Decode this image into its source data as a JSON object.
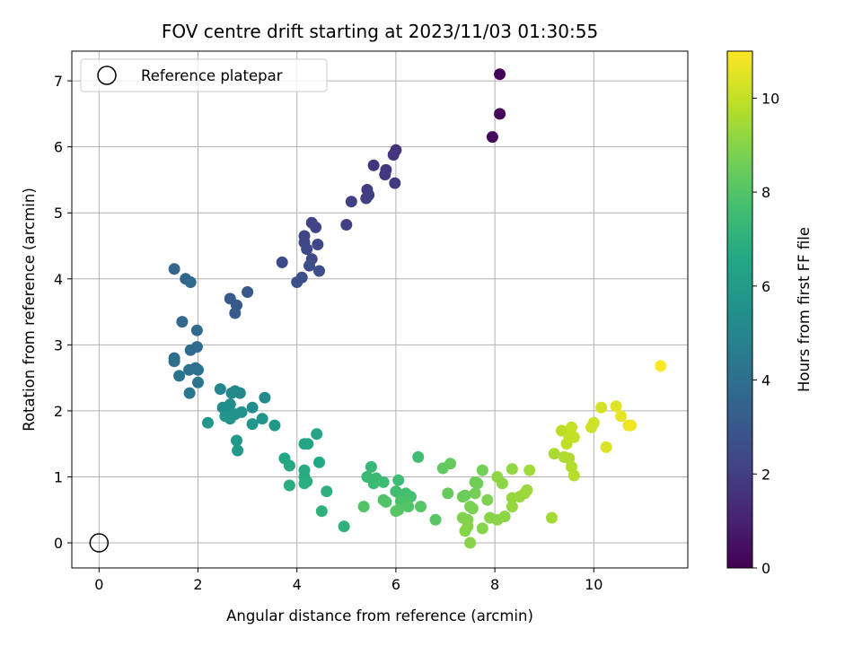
{
  "chart_data": {
    "type": "scatter",
    "title": "FOV centre drift starting at 2023/11/03 01:30:55",
    "xlabel": "Angular distance from reference (arcmin)",
    "ylabel": "Rotation from reference (arcmin)",
    "xlim": [
      -0.55,
      11.9
    ],
    "ylim": [
      -0.38,
      7.45
    ],
    "x_ticks": [
      0,
      2,
      4,
      6,
      8,
      10
    ],
    "y_ticks": [
      0,
      1,
      2,
      3,
      4,
      5,
      6,
      7
    ],
    "grid": true,
    "legend": {
      "position": "top-left",
      "entries": [
        "Reference platepar"
      ]
    },
    "reference_point": {
      "x": 0,
      "y": 0,
      "label": "Reference platepar"
    },
    "colorbar": {
      "label": "Hours from first FF file",
      "range": [
        0,
        11
      ],
      "ticks": [
        0,
        2,
        4,
        6,
        8,
        10
      ],
      "colormap": "viridis"
    },
    "series": [
      {
        "points": [
          [
            8.1,
            7.1,
            0.1
          ],
          [
            8.1,
            6.5,
            0.2
          ],
          [
            7.95,
            6.15,
            0.3
          ],
          [
            6.0,
            5.95,
            1.6
          ],
          [
            5.95,
            5.88,
            1.65
          ],
          [
            5.55,
            5.72,
            1.7
          ],
          [
            5.8,
            5.65,
            1.75
          ],
          [
            5.78,
            5.58,
            1.8
          ],
          [
            5.98,
            5.45,
            1.85
          ],
          [
            5.42,
            5.35,
            1.9
          ],
          [
            5.45,
            5.27,
            1.95
          ],
          [
            5.4,
            5.22,
            2.0
          ],
          [
            5.1,
            5.17,
            2.05
          ],
          [
            5.0,
            4.82,
            2.1
          ],
          [
            4.3,
            4.85,
            2.15
          ],
          [
            4.38,
            4.78,
            2.2
          ],
          [
            4.15,
            4.65,
            2.25
          ],
          [
            4.15,
            4.55,
            2.3
          ],
          [
            4.42,
            4.52,
            2.35
          ],
          [
            4.2,
            4.45,
            2.4
          ],
          [
            4.3,
            4.3,
            2.45
          ],
          [
            3.7,
            4.25,
            2.5
          ],
          [
            4.25,
            4.2,
            2.55
          ],
          [
            4.45,
            4.12,
            2.6
          ],
          [
            4.1,
            4.02,
            2.65
          ],
          [
            4.0,
            3.95,
            2.7
          ],
          [
            3.0,
            3.8,
            3.0
          ],
          [
            2.65,
            3.7,
            3.05
          ],
          [
            2.78,
            3.6,
            3.1
          ],
          [
            2.75,
            3.48,
            3.15
          ],
          [
            1.52,
            4.15,
            3.6
          ],
          [
            1.75,
            4.0,
            3.65
          ],
          [
            1.85,
            3.95,
            3.7
          ],
          [
            1.68,
            3.35,
            3.75
          ],
          [
            1.98,
            3.22,
            3.8
          ],
          [
            1.98,
            2.97,
            3.85
          ],
          [
            1.85,
            2.92,
            3.9
          ],
          [
            1.52,
            2.8,
            3.95
          ],
          [
            1.52,
            2.75,
            4.0
          ],
          [
            1.95,
            2.65,
            4.05
          ],
          [
            1.82,
            2.62,
            4.1
          ],
          [
            2.0,
            2.62,
            4.15
          ],
          [
            1.62,
            2.53,
            4.2
          ],
          [
            2.0,
            2.43,
            4.3
          ],
          [
            1.83,
            2.27,
            4.4
          ],
          [
            2.45,
            2.33,
            5.0
          ],
          [
            2.75,
            2.3,
            5.05
          ],
          [
            2.68,
            2.27,
            5.1
          ],
          [
            2.85,
            2.27,
            5.15
          ],
          [
            3.35,
            2.2,
            5.2
          ],
          [
            2.5,
            2.05,
            5.25
          ],
          [
            2.65,
            2.1,
            5.3
          ],
          [
            3.1,
            2.05,
            5.35
          ],
          [
            2.6,
            2.0,
            5.4
          ],
          [
            2.55,
            2.03,
            5.45
          ],
          [
            2.75,
            1.95,
            5.5
          ],
          [
            2.88,
            1.98,
            5.55
          ],
          [
            2.65,
            1.88,
            5.6
          ],
          [
            2.55,
            1.92,
            5.65
          ],
          [
            3.3,
            1.88,
            5.7
          ],
          [
            3.1,
            1.8,
            5.75
          ],
          [
            2.2,
            1.82,
            5.8
          ],
          [
            3.55,
            1.78,
            5.85
          ],
          [
            2.78,
            1.55,
            5.9
          ],
          [
            2.8,
            1.4,
            5.95
          ],
          [
            4.4,
            1.65,
            6.4
          ],
          [
            4.15,
            1.5,
            6.45
          ],
          [
            4.22,
            1.5,
            6.5
          ],
          [
            3.75,
            1.28,
            6.55
          ],
          [
            4.45,
            1.22,
            6.6
          ],
          [
            3.85,
            1.17,
            6.65
          ],
          [
            4.15,
            1.1,
            6.7
          ],
          [
            4.15,
            1.0,
            6.75
          ],
          [
            4.2,
            0.93,
            6.8
          ],
          [
            4.15,
            0.9,
            6.85
          ],
          [
            3.85,
            0.87,
            6.9
          ],
          [
            4.6,
            0.78,
            6.95
          ],
          [
            4.5,
            0.48,
            7.0
          ],
          [
            4.95,
            0.25,
            7.05
          ],
          [
            5.5,
            1.15,
            7.3
          ],
          [
            5.42,
            1.0,
            7.35
          ],
          [
            5.6,
            0.98,
            7.4
          ],
          [
            5.55,
            0.9,
            7.45
          ],
          [
            5.75,
            0.92,
            7.5
          ],
          [
            6.05,
            0.95,
            7.55
          ],
          [
            6.45,
            1.3,
            7.6
          ],
          [
            6.0,
            0.78,
            7.6
          ],
          [
            6.1,
            0.72,
            7.65
          ],
          [
            6.2,
            0.75,
            7.7
          ],
          [
            6.3,
            0.7,
            7.75
          ],
          [
            6.2,
            0.65,
            7.8
          ],
          [
            6.1,
            0.63,
            7.85
          ],
          [
            5.75,
            0.65,
            7.9
          ],
          [
            5.8,
            0.62,
            7.95
          ],
          [
            5.35,
            0.55,
            7.95
          ],
          [
            6.25,
            0.55,
            8.0
          ],
          [
            6.5,
            0.55,
            8.05
          ],
          [
            6.05,
            0.5,
            8.05
          ],
          [
            6.0,
            0.48,
            8.1
          ],
          [
            6.8,
            0.35,
            8.15
          ],
          [
            6.95,
            1.13,
            8.3
          ],
          [
            7.1,
            1.2,
            8.35
          ],
          [
            7.05,
            0.75,
            8.4
          ],
          [
            7.4,
            0.72,
            8.45
          ],
          [
            7.35,
            0.7,
            8.5
          ],
          [
            7.6,
            0.92,
            8.55
          ],
          [
            7.65,
            0.9,
            8.6
          ],
          [
            7.75,
            1.1,
            8.65
          ],
          [
            7.6,
            0.75,
            8.7
          ],
          [
            7.5,
            0.55,
            8.75
          ],
          [
            7.55,
            0.52,
            8.8
          ],
          [
            7.85,
            0.65,
            8.85
          ],
          [
            7.35,
            0.38,
            8.9
          ],
          [
            7.45,
            0.35,
            8.9
          ],
          [
            7.45,
            0.25,
            8.95
          ],
          [
            7.4,
            0.18,
            9.0
          ],
          [
            7.5,
            0.0,
            9.0
          ],
          [
            7.75,
            0.22,
            9.0
          ],
          [
            7.9,
            0.38,
            9.05
          ],
          [
            8.05,
            0.35,
            9.05
          ],
          [
            8.2,
            0.4,
            9.1
          ],
          [
            8.15,
            0.9,
            9.1
          ],
          [
            8.05,
            1.0,
            9.15
          ],
          [
            8.35,
            1.12,
            9.2
          ],
          [
            8.35,
            0.68,
            9.25
          ],
          [
            8.35,
            0.55,
            9.25
          ],
          [
            8.5,
            0.7,
            9.3
          ],
          [
            8.6,
            0.75,
            9.35
          ],
          [
            8.65,
            0.8,
            9.35
          ],
          [
            8.7,
            1.1,
            9.4
          ],
          [
            9.15,
            0.38,
            9.5
          ],
          [
            9.2,
            1.35,
            9.6
          ],
          [
            9.4,
            1.3,
            9.65
          ],
          [
            9.5,
            1.28,
            9.7
          ],
          [
            9.55,
            1.15,
            9.75
          ],
          [
            9.6,
            1.02,
            9.8
          ],
          [
            9.35,
            1.7,
            9.85
          ],
          [
            9.45,
            1.5,
            9.9
          ],
          [
            9.5,
            1.6,
            9.95
          ],
          [
            9.6,
            1.6,
            10.0
          ],
          [
            9.55,
            1.75,
            10.05
          ],
          [
            9.95,
            1.75,
            10.15
          ],
          [
            10.0,
            1.82,
            10.2
          ],
          [
            10.15,
            2.05,
            10.3
          ],
          [
            10.25,
            1.45,
            10.4
          ],
          [
            10.45,
            2.07,
            10.5
          ],
          [
            10.55,
            1.92,
            10.6
          ],
          [
            10.7,
            1.78,
            10.7
          ],
          [
            10.75,
            1.78,
            10.8
          ],
          [
            11.35,
            2.68,
            10.95
          ]
        ]
      }
    ]
  }
}
